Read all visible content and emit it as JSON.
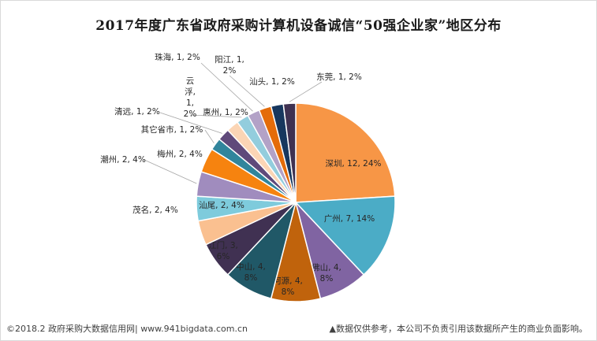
{
  "chart_data": {
    "type": "pie",
    "title": "2017年度广东省政府采购计算机设备诚信“50强企业家”地区分布",
    "slices": [
      {
        "name": "深圳",
        "value": 12,
        "percent": "24%",
        "color": "#f79646"
      },
      {
        "name": "广州",
        "value": 7,
        "percent": "14%",
        "color": "#4bacc6"
      },
      {
        "name": "佛山",
        "value": 4,
        "percent": "8%",
        "color": "#8064a2"
      },
      {
        "name": "河源",
        "value": 4,
        "percent": "8%",
        "color": "#c0630c"
      },
      {
        "name": "中山",
        "value": 4,
        "percent": "8%",
        "color": "#205867"
      },
      {
        "name": "江门",
        "value": 3,
        "percent": "6%",
        "color": "#403152"
      },
      {
        "name": "茂名",
        "value": 2,
        "percent": "4%",
        "color": "#fac090"
      },
      {
        "name": "汕尾",
        "value": 2,
        "percent": "4%",
        "color": "#7ecbdc"
      },
      {
        "name": "潮州",
        "value": 2,
        "percent": "4%",
        "color": "#a08cbe"
      },
      {
        "name": "梅州",
        "value": 2,
        "percent": "4%",
        "color": "#f6830f"
      },
      {
        "name": "其它省市",
        "value": 1,
        "percent": "2%",
        "color": "#31859c"
      },
      {
        "name": "清远",
        "value": 1,
        "percent": "2%",
        "color": "#5f497a"
      },
      {
        "name": "惠州",
        "value": 1,
        "percent": "2%",
        "color": "#fbd5b5"
      },
      {
        "name": "云浮",
        "value": 1,
        "percent": "2%",
        "color": "#93cddd"
      },
      {
        "name": "珠海",
        "value": 1,
        "percent": "2%",
        "color": "#b3a2c7"
      },
      {
        "name": "阳江",
        "value": 1,
        "percent": "2%",
        "color": "#e46c0a"
      },
      {
        "name": "汕头",
        "value": 1,
        "percent": "2%",
        "color": "#17375e"
      },
      {
        "name": "东莞",
        "value": 1,
        "percent": "2%",
        "color": "#3f3151"
      }
    ]
  },
  "footer": {
    "left": "©2018.2 政府采购大数据信用网| www.941bigdata.com.cn",
    "right": "▲数据仅供参考，本公司不负责引用该数据所产生的商业负面影响。"
  }
}
